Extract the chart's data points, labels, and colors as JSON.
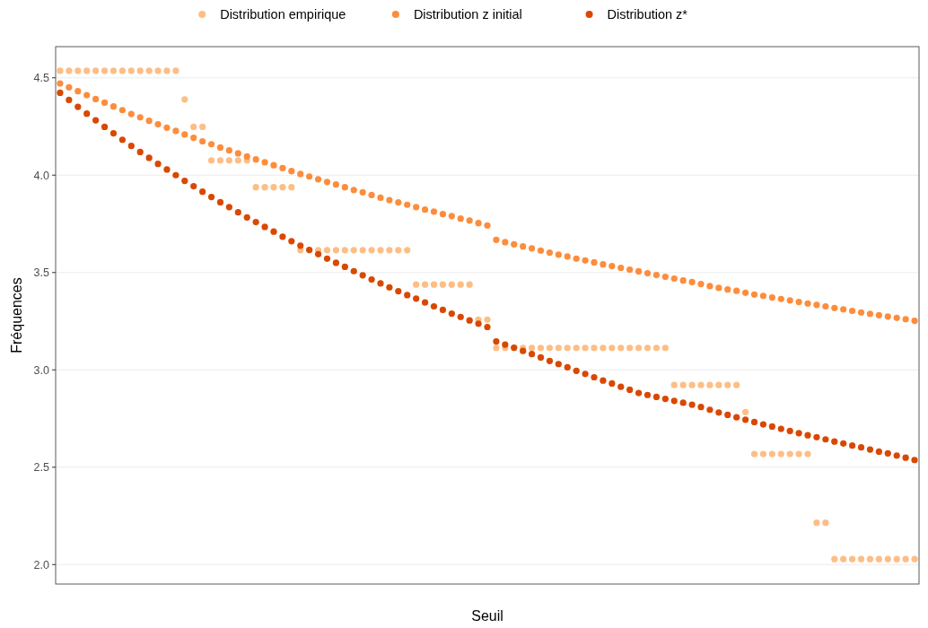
{
  "chart_data": {
    "type": "scatter",
    "xlabel": "Seuil",
    "ylabel": "Fréquences",
    "categories": [
      null,
      null,
      null,
      null,
      null,
      null,
      null,
      null,
      null,
      null,
      null,
      null,
      null,
      null,
      null,
      null,
      null,
      null,
      null,
      null,
      null,
      null,
      null,
      null,
      null,
      null,
      null,
      null,
      null,
      null,
      null,
      null,
      null,
      null,
      null,
      null,
      null,
      null,
      null,
      null,
      null,
      null,
      null,
      null,
      null,
      null,
      null,
      null,
      null,
      null,
      null,
      null,
      null,
      null,
      null,
      null,
      null,
      null,
      null,
      null,
      null,
      null,
      null,
      null,
      null,
      null,
      null,
      null,
      null,
      null,
      null,
      null,
      null,
      null,
      null,
      null,
      null,
      null,
      null,
      null,
      null,
      null,
      null,
      null,
      null,
      null,
      null,
      null,
      null,
      null,
      null,
      null,
      null,
      null,
      null,
      null,
      null
    ],
    "ylim": [
      1.9,
      4.66
    ],
    "yticks": [
      {
        "value": 2,
        "label": "2.0"
      },
      2.5,
      {
        "value": 3,
        "label": "3.0"
      },
      3.5,
      {
        "value": 4,
        "label": "4.0"
      },
      4.5
    ],
    "grid": "y",
    "legend": "top",
    "marker": "circle",
    "series": [
      {
        "name": "Distribution empirique",
        "color": "#fdbe85",
        "values": [
          4.536,
          4.536,
          4.536,
          4.536,
          4.536,
          4.536,
          4.536,
          4.536,
          4.536,
          4.536,
          4.536,
          4.536,
          4.536,
          4.536,
          4.389,
          4.248,
          4.248,
          4.076,
          4.076,
          4.076,
          4.076,
          4.076,
          3.938,
          3.938,
          3.938,
          3.938,
          3.938,
          3.615,
          3.615,
          3.615,
          3.615,
          3.615,
          3.615,
          3.615,
          3.615,
          3.615,
          3.615,
          3.615,
          3.615,
          3.615,
          3.438,
          3.438,
          3.438,
          3.438,
          3.438,
          3.438,
          3.438,
          3.258,
          3.258,
          3.113,
          3.113,
          3.113,
          3.113,
          3.113,
          3.113,
          3.113,
          3.113,
          3.113,
          3.113,
          3.113,
          3.113,
          3.113,
          3.113,
          3.113,
          3.113,
          3.113,
          3.113,
          3.113,
          3.113,
          2.922,
          2.922,
          2.922,
          2.922,
          2.922,
          2.922,
          2.922,
          2.922,
          2.783,
          2.568,
          2.568,
          2.568,
          2.568,
          2.568,
          2.568,
          2.568,
          2.215,
          2.215,
          2.028,
          2.028,
          2.028,
          2.028,
          2.028,
          2.028,
          2.028,
          2.028,
          2.028,
          2.028
        ]
      },
      {
        "name": "Distribution z initial",
        "color": "#fd8d3c",
        "values": [
          4.471,
          4.451,
          4.431,
          4.411,
          4.391,
          4.373,
          4.353,
          4.334,
          4.314,
          4.297,
          4.279,
          4.261,
          4.244,
          4.227,
          4.209,
          4.192,
          4.174,
          4.159,
          4.142,
          4.127,
          4.112,
          4.096,
          4.081,
          4.066,
          4.051,
          4.036,
          4.021,
          4.006,
          3.993,
          3.979,
          3.965,
          3.952,
          3.938,
          3.924,
          3.912,
          3.898,
          3.884,
          3.872,
          3.86,
          3.848,
          3.836,
          3.823,
          3.813,
          3.8,
          3.79,
          3.777,
          3.767,
          3.754,
          3.742,
          3.668,
          3.656,
          3.645,
          3.634,
          3.624,
          3.613,
          3.602,
          3.592,
          3.582,
          3.571,
          3.562,
          3.552,
          3.542,
          3.533,
          3.524,
          3.515,
          3.506,
          3.496,
          3.487,
          3.478,
          3.469,
          3.459,
          3.451,
          3.441,
          3.43,
          3.421,
          3.413,
          3.406,
          3.396,
          3.387,
          3.38,
          3.372,
          3.364,
          3.357,
          3.349,
          3.341,
          3.334,
          3.326,
          3.318,
          3.311,
          3.303,
          3.295,
          3.288,
          3.281,
          3.274,
          3.267,
          3.26,
          3.252
        ]
      },
      {
        "name": "Distribution z*",
        "color": "#d94801",
        "values": [
          4.423,
          4.386,
          4.351,
          4.316,
          4.282,
          4.248,
          4.215,
          4.182,
          4.15,
          4.119,
          4.089,
          4.058,
          4.029,
          4.0,
          3.971,
          3.943,
          3.915,
          3.888,
          3.861,
          3.836,
          3.809,
          3.783,
          3.759,
          3.734,
          3.71,
          3.684,
          3.661,
          3.638,
          3.616,
          3.594,
          3.571,
          3.55,
          3.529,
          3.507,
          3.486,
          3.464,
          3.444,
          3.424,
          3.404,
          3.384,
          3.366,
          3.346,
          3.326,
          3.308,
          3.289,
          3.272,
          3.254,
          3.237,
          3.22,
          3.146,
          3.13,
          3.114,
          3.097,
          3.081,
          3.064,
          3.046,
          3.03,
          3.013,
          2.995,
          2.979,
          2.962,
          2.945,
          2.93,
          2.913,
          2.898,
          2.881,
          2.871,
          2.861,
          2.851,
          2.841,
          2.831,
          2.821,
          2.809,
          2.795,
          2.781,
          2.769,
          2.756,
          2.744,
          2.732,
          2.72,
          2.709,
          2.697,
          2.686,
          2.675,
          2.664,
          2.654,
          2.643,
          2.632,
          2.622,
          2.611,
          2.602,
          2.591,
          2.58,
          2.571,
          2.56,
          2.549,
          2.537
        ]
      }
    ]
  }
}
